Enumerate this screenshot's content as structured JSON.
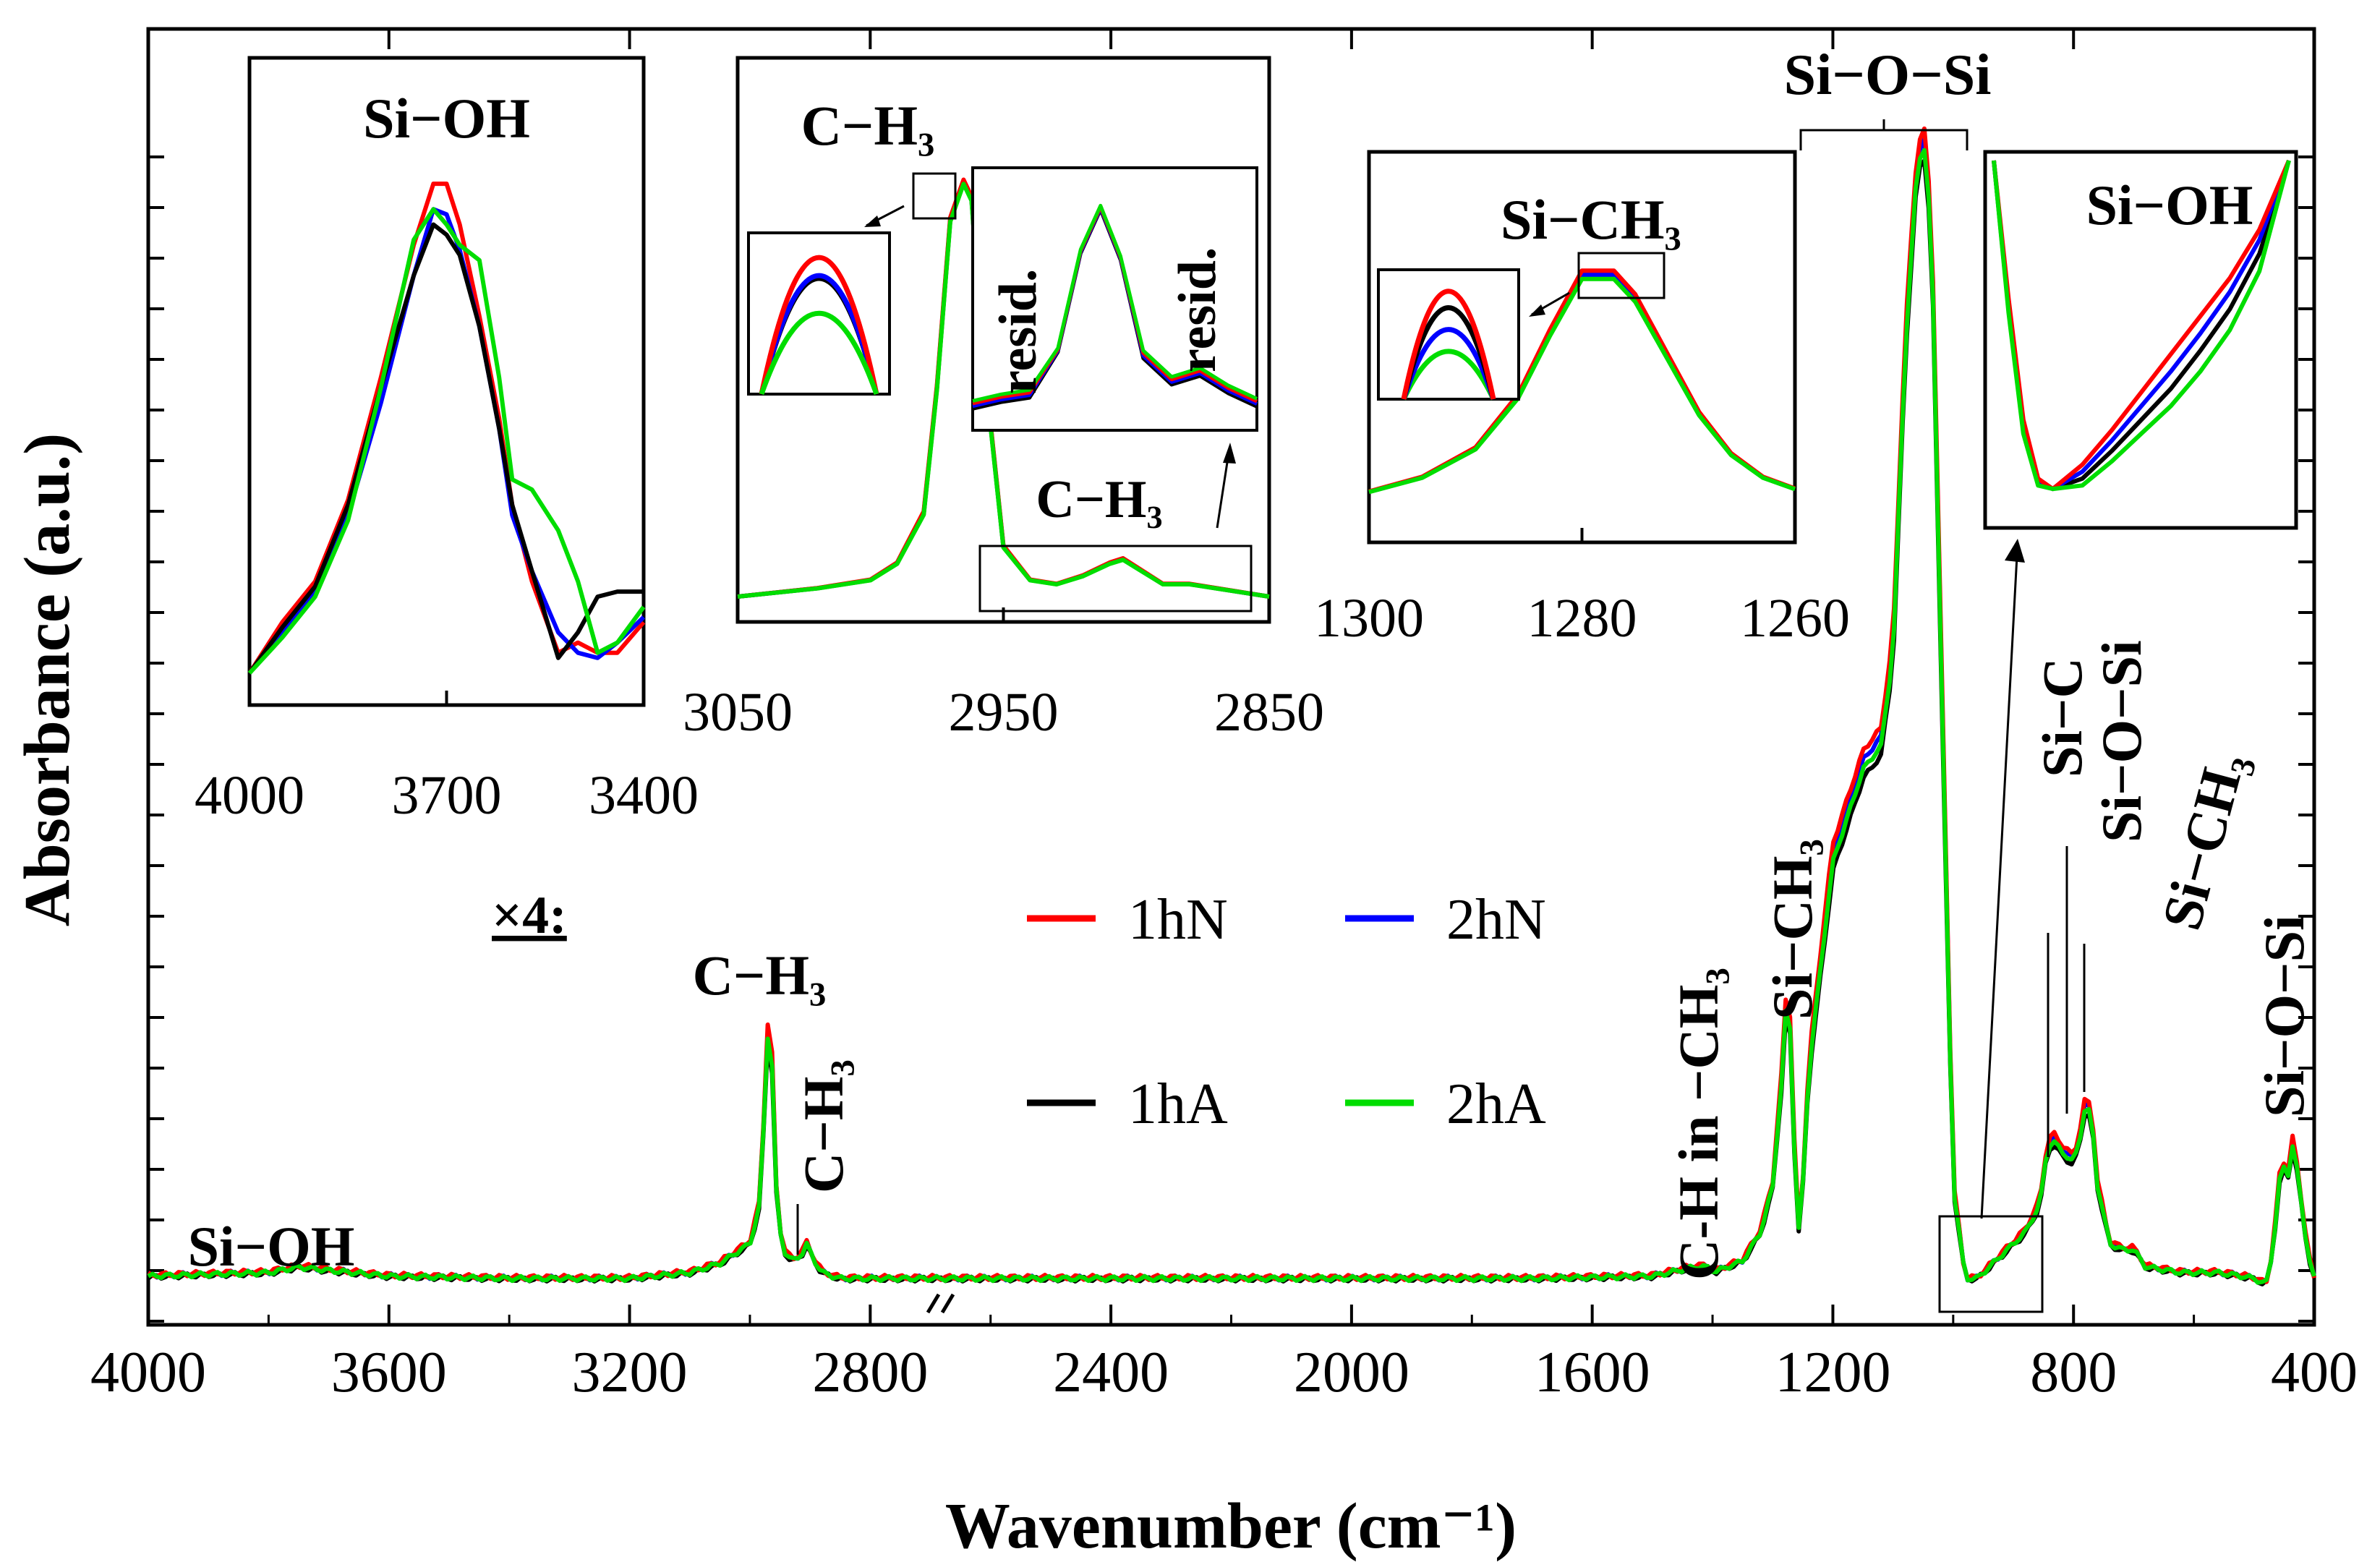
{
  "chart_data": {
    "type": "line",
    "title": "",
    "xlabel": "Wavenumber (cm⁻¹)",
    "ylabel": "Absorbance (a.u.)",
    "x_reversed": true,
    "x_break": 2700,
    "xlim": [
      4000,
      400
    ],
    "x_ticks": [
      "4000",
      "3600",
      "3200",
      "2800",
      "2400",
      "2000",
      "1600",
      "1200",
      "800",
      "400"
    ],
    "x_tick_values": [
      4000,
      3600,
      3200,
      2800,
      2400,
      2000,
      1600,
      1200,
      800,
      400
    ],
    "scale_note": "×4:",
    "legend": {
      "placement": "center",
      "entries": [
        {
          "name": "1hN",
          "color": "#ff0000"
        },
        {
          "name": "2hN",
          "color": "#0000ff"
        },
        {
          "name": "1hA",
          "color": "#000000"
        },
        {
          "name": "2hA",
          "color": "#00dd00"
        }
      ]
    },
    "colors": {
      "1hN": "#ff0000",
      "2hN": "#0000ff",
      "1hA": "#000000",
      "2hA": "#00dd00"
    },
    "ylim": [
      0,
      1
    ],
    "main_series": {
      "x": [
        4000,
        3800,
        3750,
        3700,
        3600,
        3400,
        3200,
        3100,
        3050,
        3000,
        2985,
        2975,
        2968,
        2962,
        2955,
        2945,
        2930,
        2915,
        2905,
        2895,
        2880,
        2850,
        2800,
        2700,
        2600,
        2400,
        2000,
        1700,
        1500,
        1430,
        1410,
        1395,
        1350,
        1320,
        1300,
        1285,
        1275,
        1268,
        1262,
        1255,
        1240,
        1200,
        1150,
        1120,
        1100,
        1080,
        1060,
        1050,
        1045,
        1035,
        1020,
        1000,
        980,
        960,
        940,
        920,
        900,
        880,
        860,
        850,
        845,
        835,
        820,
        800,
        790,
        780,
        770,
        760,
        740,
        720,
        700,
        680,
        620,
        560,
        520,
        500,
        480,
        470,
        462,
        455,
        450,
        445,
        438,
        430,
        420,
        410,
        400
      ],
      "values": [
        0.022,
        0.025,
        0.03,
        0.027,
        0.022,
        0.02,
        0.02,
        0.025,
        0.033,
        0.05,
        0.08,
        0.17,
        0.26,
        0.19,
        0.08,
        0.045,
        0.035,
        0.04,
        0.05,
        0.037,
        0.025,
        0.02,
        0.02,
        0.02,
        0.02,
        0.02,
        0.02,
        0.02,
        0.022,
        0.03,
        0.03,
        0.026,
        0.035,
        0.06,
        0.1,
        0.19,
        0.28,
        0.2,
        0.1,
        0.05,
        0.2,
        0.38,
        0.46,
        0.48,
        0.56,
        0.82,
        0.98,
        1.0,
        0.99,
        0.9,
        0.55,
        0.1,
        0.02,
        0.02,
        0.03,
        0.04,
        0.05,
        0.06,
        0.08,
        0.1,
        0.13,
        0.14,
        0.13,
        0.12,
        0.14,
        0.17,
        0.16,
        0.1,
        0.05,
        0.045,
        0.045,
        0.03,
        0.025,
        0.025,
        0.022,
        0.02,
        0.015,
        0.04,
        0.08,
        0.12,
        0.115,
        0.1,
        0.14,
        0.12,
        0.08,
        0.04,
        0.02
      ],
      "series_offsets": {
        "1hN": 0.004,
        "2hN": 0.002,
        "1hA": -0.002,
        "2hA": 0.0
      }
    },
    "peak_labels": [
      {
        "text": "Si−OH",
        "x": 3850
      },
      {
        "text": "C−H₃",
        "x": 2965
      },
      {
        "text": "C−H₃",
        "x": 2905,
        "rotated": true
      },
      {
        "text": "C-H in −CH₃",
        "x": 1410,
        "rotated": true
      },
      {
        "text": "Si−CH₃",
        "x": 1275,
        "rotated": true
      },
      {
        "text": "Si−O−Si",
        "x": 1060
      },
      {
        "text": "Si−C",
        "x": 845,
        "rotated": true
      },
      {
        "text": "Si−O−Si",
        "x": 810,
        "rotated": true
      },
      {
        "text": "Si−CH₃",
        "x": 780,
        "rotated": true
      },
      {
        "text": "Si−O−Si",
        "x": 455,
        "rotated": true
      }
    ],
    "insets": [
      {
        "name": "Si-OH",
        "label": "Si−OH",
        "xlim": [
          4000,
          3400
        ],
        "x_ticks": [
          "4000",
          "3700",
          "3400"
        ],
        "x_tick_values": [
          4000,
          3700,
          3400
        ],
        "ylim": [
          0,
          1
        ],
        "series": [
          {
            "name": "1hN",
            "x": [
              4000,
              3950,
              3900,
              3850,
              3800,
              3750,
              3720,
              3700,
              3680,
              3650,
              3620,
              3600,
              3570,
              3530,
              3500,
              3470,
              3440,
              3400
            ],
            "values": [
              0.02,
              0.12,
              0.2,
              0.36,
              0.6,
              0.86,
              0.98,
              0.98,
              0.9,
              0.72,
              0.52,
              0.35,
              0.2,
              0.06,
              0.08,
              0.06,
              0.06,
              0.12
            ]
          },
          {
            "name": "2hN",
            "x": [
              4000,
              3950,
              3900,
              3850,
              3800,
              3750,
              3720,
              3700,
              3680,
              3650,
              3620,
              3600,
              3570,
              3530,
              3500,
              3470,
              3440,
              3400
            ],
            "values": [
              0.02,
              0.1,
              0.18,
              0.33,
              0.55,
              0.8,
              0.93,
              0.92,
              0.85,
              0.7,
              0.5,
              0.33,
              0.22,
              0.1,
              0.06,
              0.05,
              0.08,
              0.13
            ]
          },
          {
            "name": "1hA",
            "x": [
              4000,
              3950,
              3900,
              3850,
              3800,
              3750,
              3720,
              3700,
              3680,
              3650,
              3620,
              3600,
              3570,
              3530,
              3500,
              3470,
              3440,
              3400
            ],
            "values": [
              0.02,
              0.11,
              0.19,
              0.35,
              0.58,
              0.8,
              0.9,
              0.88,
              0.84,
              0.7,
              0.5,
              0.35,
              0.22,
              0.05,
              0.1,
              0.17,
              0.18,
              0.18
            ]
          },
          {
            "name": "2hA",
            "x": [
              4000,
              3950,
              3900,
              3850,
              3800,
              3750,
              3720,
              3700,
              3680,
              3650,
              3620,
              3600,
              3570,
              3530,
              3500,
              3470,
              3440,
              3400
            ],
            "values": [
              0.02,
              0.09,
              0.17,
              0.32,
              0.58,
              0.87,
              0.93,
              0.9,
              0.86,
              0.83,
              0.6,
              0.4,
              0.38,
              0.3,
              0.2,
              0.06,
              0.08,
              0.15
            ]
          }
        ]
      },
      {
        "name": "C-H3",
        "label": "C−H₃",
        "xlim": [
          3050,
          2850
        ],
        "x_ticks": [
          "3050",
          "2950",
          "2850"
        ],
        "x_tick_values": [
          3050,
          2950,
          2850
        ],
        "ylim": [
          0,
          1
        ],
        "base_series": {
          "x": [
            3050,
            3020,
            3000,
            2990,
            2980,
            2975,
            2970,
            2965,
            2962,
            2958,
            2950,
            2940,
            2930,
            2920,
            2910,
            2905,
            2900,
            2890,
            2880,
            2870,
            2860,
            2850
          ],
          "values": [
            0.0,
            0.02,
            0.04,
            0.08,
            0.2,
            0.5,
            0.9,
            0.99,
            0.95,
            0.6,
            0.12,
            0.04,
            0.03,
            0.05,
            0.08,
            0.09,
            0.07,
            0.03,
            0.03,
            0.02,
            0.01,
            0.0
          ]
        },
        "peak_zoom": {
          "1hN": 0.95,
          "2hN": 0.82,
          "1hA": 0.8,
          "2hA": 0.55
        },
        "resid_labels": [
          "resid.",
          "resid."
        ],
        "resid_series": {
          "x": [
            2950,
            2940,
            2930,
            2920,
            2912,
            2905,
            2898,
            2890,
            2880,
            2870,
            2860,
            2850
          ],
          "values": [
            0.05,
            0.08,
            0.1,
            0.3,
            0.75,
            0.95,
            0.72,
            0.28,
            0.16,
            0.2,
            0.12,
            0.06
          ]
        },
        "sub_label": "C−H₃"
      },
      {
        "name": "Si-CH3",
        "label": "Si−CH₃",
        "xlim": [
          1300,
          1260
        ],
        "x_ticks": [
          "1300",
          "1280",
          "1260"
        ],
        "x_tick_values": [
          1300,
          1280,
          1260
        ],
        "ylim": [
          0,
          1
        ],
        "series_x": [
          1300,
          1295,
          1290,
          1286,
          1283,
          1280,
          1277,
          1275,
          1272,
          1269,
          1266,
          1263,
          1260
        ],
        "series_values": [
          0.05,
          0.1,
          0.2,
          0.38,
          0.6,
          0.8,
          0.8,
          0.72,
          0.52,
          0.32,
          0.18,
          0.1,
          0.06
        ],
        "peak_zoom": {
          "1hN": 0.95,
          "2hN": 0.6,
          "1hA": 0.8,
          "2hA": 0.4
        }
      },
      {
        "name": "Si-OH-right",
        "label": "Si−OH",
        "ylim": [
          0,
          1
        ],
        "series_x": [
          0,
          0.05,
          0.1,
          0.15,
          0.2,
          0.3,
          0.4,
          0.5,
          0.6,
          0.7,
          0.8,
          0.9,
          1.0
        ],
        "series": {
          "1hN": [
            1.0,
            0.6,
            0.25,
            0.08,
            0.05,
            0.12,
            0.22,
            0.33,
            0.44,
            0.55,
            0.66,
            0.8,
            1.0
          ],
          "2hN": [
            1.0,
            0.58,
            0.23,
            0.07,
            0.05,
            0.1,
            0.19,
            0.29,
            0.39,
            0.5,
            0.62,
            0.77,
            1.0
          ],
          "1hA": [
            1.0,
            0.57,
            0.22,
            0.07,
            0.05,
            0.08,
            0.16,
            0.25,
            0.34,
            0.45,
            0.57,
            0.73,
            1.0
          ],
          "2hA": [
            1.0,
            0.56,
            0.21,
            0.06,
            0.05,
            0.06,
            0.13,
            0.21,
            0.29,
            0.39,
            0.51,
            0.68,
            1.0
          ]
        }
      }
    ]
  }
}
